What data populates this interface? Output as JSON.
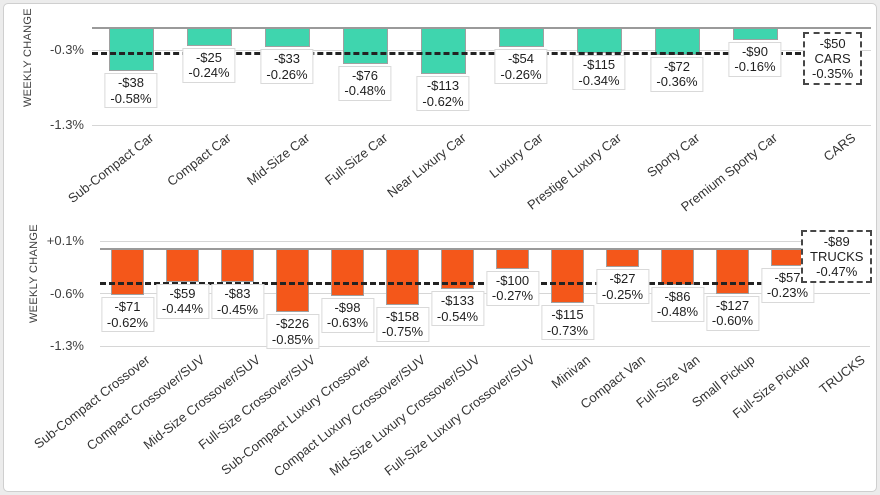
{
  "page": {
    "background": "#ececec",
    "card_background": "#ffffff",
    "card_border": "#cfcfcf"
  },
  "colors": {
    "cars_bar": "#3FD5AE",
    "trucks_bar": "#F4571A",
    "average_line": "#232323",
    "gridline": "#d6d6d6",
    "zero_baseline": "#9a9a9a",
    "value_box_border": "#d9d9d9",
    "text": "#1f1f1f",
    "tick_text": "#404040"
  },
  "chart_data": [
    {
      "type": "bar",
      "name": "cars",
      "title": "",
      "ylabel": "WEEKLY CHANGE",
      "xlabel": "",
      "bar_color": "#3FD5AE",
      "grid": "horizontal",
      "legend": "none",
      "ylim": [
        -1.3,
        0.05
      ],
      "yticks": [
        {
          "label": "-0.3%",
          "value": -0.3
        },
        {
          "label": "-1.3%",
          "value": -1.3
        }
      ],
      "categories": [
        "Sub-Compact Car",
        "Compact Car",
        "Mid-Size Car",
        "Full-Size Car",
        "Near Luxury Car",
        "Luxury Car",
        "Prestige Luxury Car",
        "Sporty Car",
        "Premium Sporty Car",
        "CARS"
      ],
      "series": [
        {
          "name": "dollar_change",
          "values": [
            -38,
            -25,
            -33,
            -76,
            -113,
            -54,
            -115,
            -72,
            -90,
            null
          ]
        },
        {
          "name": "percent_change",
          "values": [
            -0.58,
            -0.24,
            -0.26,
            -0.48,
            -0.62,
            -0.26,
            -0.34,
            -0.36,
            -0.16,
            null
          ]
        }
      ],
      "dollar_labels": [
        "-$38",
        "-$25",
        "-$33",
        "-$76",
        "-$113",
        "-$54",
        "-$115",
        "-$72",
        "-$90",
        null
      ],
      "percent_labels": [
        "-0.58%",
        "-0.24%",
        "-0.26%",
        "-0.48%",
        "-0.62%",
        "-0.26%",
        "-0.34%",
        "-0.36%",
        "-0.16%",
        null
      ],
      "average": {
        "label": "CARS",
        "dollar": "-$50",
        "percent": "-0.35%",
        "value": -0.35,
        "style": "dashed line across plot with dashed summary box"
      }
    },
    {
      "type": "bar",
      "name": "trucks",
      "title": "",
      "ylabel": "WEEKLY CHANGE",
      "xlabel": "",
      "bar_color": "#F4571A",
      "grid": "horizontal",
      "legend": "none",
      "ylim": [
        -1.3,
        0.1
      ],
      "yticks": [
        {
          "label": "+0.1%",
          "value": 0.1
        },
        {
          "label": "-0.6%",
          "value": -0.6
        },
        {
          "label": "-1.3%",
          "value": -1.3
        }
      ],
      "categories": [
        "Sub-Compact Crossover",
        "Compact Crossover/SUV",
        "Mid-Size Crossover/SUV",
        "Full-Size Crossover/SUV",
        "Sub-Compact Luxury Crossover",
        "Compact Luxury Crossover/SUV",
        "Mid-Size Luxury Crossover/SUV",
        "Full-Size Luxury Crossover/SUV",
        "Minivan",
        "Compact Van",
        "Full-Size Van",
        "Small Pickup",
        "Full-Size Pickup",
        "TRUCKS"
      ],
      "series": [
        {
          "name": "dollar_change",
          "values": [
            -71,
            -59,
            -83,
            -226,
            -98,
            -158,
            -133,
            -100,
            -115,
            -27,
            -86,
            -127,
            -57,
            null
          ]
        },
        {
          "name": "percent_change",
          "values": [
            -0.62,
            -0.44,
            -0.45,
            -0.85,
            -0.63,
            -0.75,
            -0.54,
            -0.27,
            -0.73,
            -0.25,
            -0.48,
            -0.6,
            -0.23,
            null
          ]
        }
      ],
      "dollar_labels": [
        "-$71",
        "-$59",
        "-$83",
        "-$226",
        "-$98",
        "-$158",
        "-$133",
        "-$100",
        "-$115",
        "-$27",
        "-$86",
        "-$127",
        "-$57",
        null
      ],
      "percent_labels": [
        "-0.62%",
        "-0.44%",
        "-0.45%",
        "-0.85%",
        "-0.63%",
        "-0.75%",
        "-0.54%",
        "-0.27%",
        "-0.73%",
        "-0.25%",
        "-0.48%",
        "-0.60%",
        "-0.23%",
        null
      ],
      "average": {
        "label": "TRUCKS",
        "dollar": "-$89",
        "percent": "-0.47%",
        "value": -0.47,
        "style": "dashed line across plot with dashed summary box"
      }
    }
  ]
}
